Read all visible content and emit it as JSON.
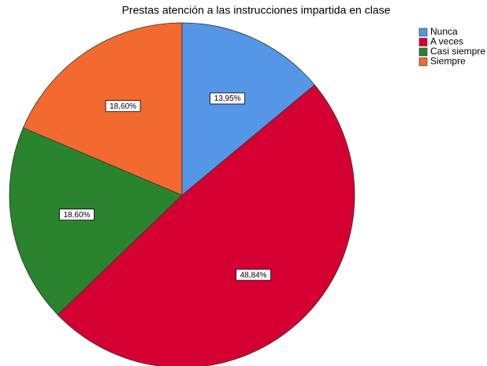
{
  "chart_data": {
    "type": "pie",
    "title": "Prestas atención a las instrucciones impartida en clase",
    "categories": [
      "Nunca",
      "A veces",
      "Casi siempre",
      "Siempre"
    ],
    "values": [
      13.95,
      48.84,
      18.6,
      18.6
    ],
    "value_labels": [
      "13,95%",
      "48,84%",
      "18,60%",
      "18,60%"
    ],
    "colors": [
      "#5596e6",
      "#d50032",
      "#2a832d",
      "#f26a2f"
    ],
    "legend": "top-right"
  }
}
